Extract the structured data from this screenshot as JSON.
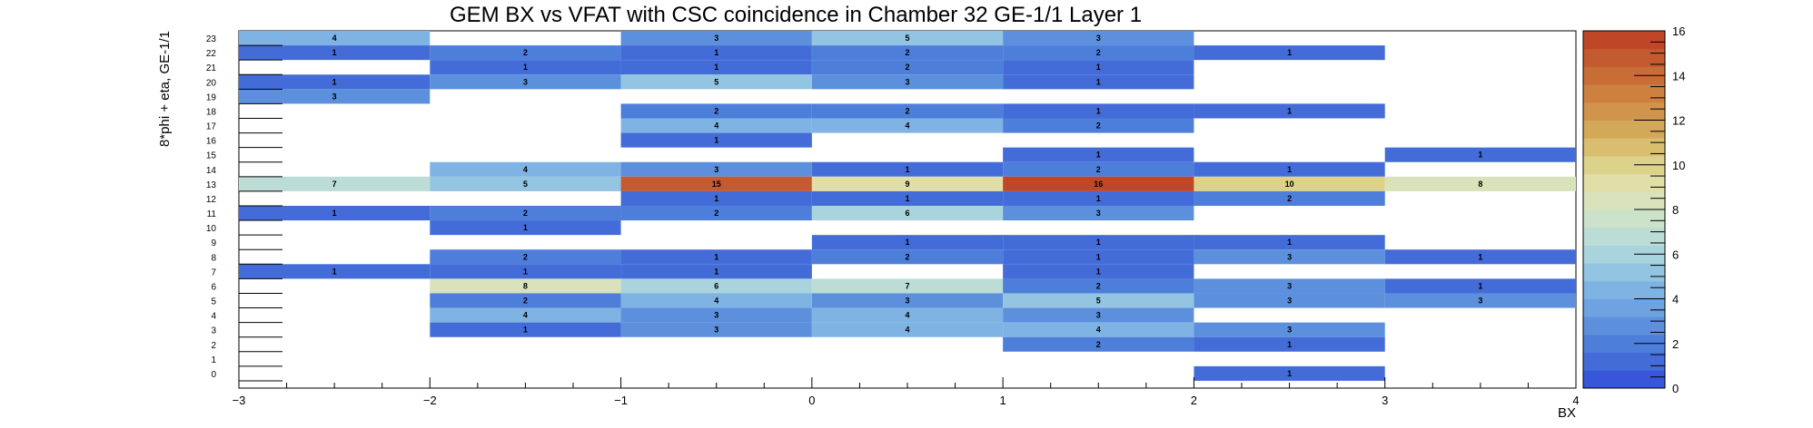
{
  "chart_data": {
    "type": "heatmap",
    "title": "GEM BX vs VFAT with CSC coincidence in Chamber 32 GE-1/1 Layer 1",
    "xlabel": "BX",
    "ylabel": "8*phi + eta, GE-1/1",
    "xlim": [
      -3,
      4
    ],
    "ylim": [
      0,
      23
    ],
    "x_ticks": [
      "−3",
      "−2",
      "−1",
      "0",
      "1",
      "2",
      "3",
      "4"
    ],
    "y_ticks": [
      "0",
      "1",
      "2",
      "3",
      "4",
      "5",
      "6",
      "7",
      "8",
      "9",
      "10",
      "11",
      "12",
      "13",
      "14",
      "15",
      "16",
      "17",
      "18",
      "19",
      "20",
      "21",
      "22",
      "23"
    ],
    "colorbar": {
      "min": 0,
      "max": 16,
      "ticks": [
        "0",
        "2",
        "4",
        "6",
        "8",
        "10",
        "12",
        "14",
        "16"
      ]
    },
    "cells": [
      {
        "x0": -3,
        "x1": -2,
        "y": 23,
        "v": 4
      },
      {
        "x0": -1,
        "x1": 0,
        "y": 23,
        "v": 3
      },
      {
        "x0": 0,
        "x1": 1,
        "y": 23,
        "v": 5
      },
      {
        "x0": 1,
        "x1": 2,
        "y": 23,
        "v": 3
      },
      {
        "x0": -3,
        "x1": -2,
        "y": 22,
        "v": 1
      },
      {
        "x0": -2,
        "x1": -1,
        "y": 22,
        "v": 2
      },
      {
        "x0": -1,
        "x1": 0,
        "y": 22,
        "v": 1
      },
      {
        "x0": 0,
        "x1": 1,
        "y": 22,
        "v": 2
      },
      {
        "x0": 1,
        "x1": 2,
        "y": 22,
        "v": 2
      },
      {
        "x0": 2,
        "x1": 3,
        "y": 22,
        "v": 1
      },
      {
        "x0": -2,
        "x1": -1,
        "y": 21,
        "v": 1
      },
      {
        "x0": -1,
        "x1": 0,
        "y": 21,
        "v": 1
      },
      {
        "x0": 0,
        "x1": 1,
        "y": 21,
        "v": 2
      },
      {
        "x0": 1,
        "x1": 2,
        "y": 21,
        "v": 1
      },
      {
        "x0": -3,
        "x1": -2,
        "y": 20,
        "v": 1
      },
      {
        "x0": -2,
        "x1": -1,
        "y": 20,
        "v": 3
      },
      {
        "x0": -1,
        "x1": 0,
        "y": 20,
        "v": 5
      },
      {
        "x0": 0,
        "x1": 1,
        "y": 20,
        "v": 3
      },
      {
        "x0": 1,
        "x1": 2,
        "y": 20,
        "v": 1
      },
      {
        "x0": -3,
        "x1": -2,
        "y": 19,
        "v": 3
      },
      {
        "x0": -1,
        "x1": 0,
        "y": 18,
        "v": 2
      },
      {
        "x0": 0,
        "x1": 1,
        "y": 18,
        "v": 2
      },
      {
        "x0": 1,
        "x1": 2,
        "y": 18,
        "v": 1
      },
      {
        "x0": 2,
        "x1": 3,
        "y": 18,
        "v": 1
      },
      {
        "x0": -1,
        "x1": 0,
        "y": 17,
        "v": 4
      },
      {
        "x0": 0,
        "x1": 1,
        "y": 17,
        "v": 4
      },
      {
        "x0": 1,
        "x1": 2,
        "y": 17,
        "v": 2
      },
      {
        "x0": -1,
        "x1": 0,
        "y": 16,
        "v": 1
      },
      {
        "x0": 1,
        "x1": 2,
        "y": 15,
        "v": 1
      },
      {
        "x0": 3,
        "x1": 4,
        "y": 15,
        "v": 1
      },
      {
        "x0": -2,
        "x1": -1,
        "y": 14,
        "v": 4
      },
      {
        "x0": -1,
        "x1": 0,
        "y": 14,
        "v": 3
      },
      {
        "x0": 0,
        "x1": 1,
        "y": 14,
        "v": 1
      },
      {
        "x0": 1,
        "x1": 2,
        "y": 14,
        "v": 2
      },
      {
        "x0": 2,
        "x1": 3,
        "y": 14,
        "v": 1
      },
      {
        "x0": -3,
        "x1": -2,
        "y": 13,
        "v": 7
      },
      {
        "x0": -2,
        "x1": -1,
        "y": 13,
        "v": 5
      },
      {
        "x0": -1,
        "x1": 0,
        "y": 13,
        "v": 15
      },
      {
        "x0": 0,
        "x1": 1,
        "y": 13,
        "v": 9
      },
      {
        "x0": 1,
        "x1": 2,
        "y": 13,
        "v": 16
      },
      {
        "x0": 2,
        "x1": 3,
        "y": 13,
        "v": 10
      },
      {
        "x0": 3,
        "x1": 4,
        "y": 13,
        "v": 8
      },
      {
        "x0": -1,
        "x1": 0,
        "y": 12,
        "v": 1
      },
      {
        "x0": 0,
        "x1": 1,
        "y": 12,
        "v": 1
      },
      {
        "x0": 1,
        "x1": 2,
        "y": 12,
        "v": 1
      },
      {
        "x0": 2,
        "x1": 3,
        "y": 12,
        "v": 2
      },
      {
        "x0": -3,
        "x1": -2,
        "y": 11,
        "v": 1
      },
      {
        "x0": -2,
        "x1": -1,
        "y": 11,
        "v": 2
      },
      {
        "x0": -1,
        "x1": 0,
        "y": 11,
        "v": 2
      },
      {
        "x0": 0,
        "x1": 1,
        "y": 11,
        "v": 6
      },
      {
        "x0": 1,
        "x1": 2,
        "y": 11,
        "v": 3
      },
      {
        "x0": -2,
        "x1": -1,
        "y": 10,
        "v": 1
      },
      {
        "x0": 0,
        "x1": 1,
        "y": 9,
        "v": 1
      },
      {
        "x0": 1,
        "x1": 2,
        "y": 9,
        "v": 1
      },
      {
        "x0": 2,
        "x1": 3,
        "y": 9,
        "v": 1
      },
      {
        "x0": -2,
        "x1": -1,
        "y": 8,
        "v": 2
      },
      {
        "x0": -1,
        "x1": 0,
        "y": 8,
        "v": 1
      },
      {
        "x0": 0,
        "x1": 1,
        "y": 8,
        "v": 2
      },
      {
        "x0": 1,
        "x1": 2,
        "y": 8,
        "v": 1
      },
      {
        "x0": 2,
        "x1": 3,
        "y": 8,
        "v": 3
      },
      {
        "x0": 3,
        "x1": 4,
        "y": 8,
        "v": 1
      },
      {
        "x0": -3,
        "x1": -2,
        "y": 7,
        "v": 1
      },
      {
        "x0": -2,
        "x1": -1,
        "y": 7,
        "v": 1
      },
      {
        "x0": -1,
        "x1": 0,
        "y": 7,
        "v": 1
      },
      {
        "x0": 1,
        "x1": 2,
        "y": 7,
        "v": 1
      },
      {
        "x0": -2,
        "x1": -1,
        "y": 6,
        "v": 8
      },
      {
        "x0": -1,
        "x1": 0,
        "y": 6,
        "v": 6
      },
      {
        "x0": 0,
        "x1": 1,
        "y": 6,
        "v": 7
      },
      {
        "x0": 1,
        "x1": 2,
        "y": 6,
        "v": 2
      },
      {
        "x0": 2,
        "x1": 3,
        "y": 6,
        "v": 3
      },
      {
        "x0": 3,
        "x1": 4,
        "y": 6,
        "v": 1
      },
      {
        "x0": -2,
        "x1": -1,
        "y": 5,
        "v": 2
      },
      {
        "x0": -1,
        "x1": 0,
        "y": 5,
        "v": 4
      },
      {
        "x0": 0,
        "x1": 1,
        "y": 5,
        "v": 3
      },
      {
        "x0": 1,
        "x1": 2,
        "y": 5,
        "v": 5
      },
      {
        "x0": 2,
        "x1": 3,
        "y": 5,
        "v": 3
      },
      {
        "x0": 3,
        "x1": 4,
        "y": 5,
        "v": 3
      },
      {
        "x0": -2,
        "x1": -1,
        "y": 4,
        "v": 4
      },
      {
        "x0": -1,
        "x1": 0,
        "y": 4,
        "v": 3
      },
      {
        "x0": 0,
        "x1": 1,
        "y": 4,
        "v": 4
      },
      {
        "x0": 1,
        "x1": 2,
        "y": 4,
        "v": 3
      },
      {
        "x0": -2,
        "x1": -1,
        "y": 3,
        "v": 1
      },
      {
        "x0": -1,
        "x1": 0,
        "y": 3,
        "v": 3
      },
      {
        "x0": 0,
        "x1": 1,
        "y": 3,
        "v": 4
      },
      {
        "x0": 1,
        "x1": 2,
        "y": 3,
        "v": 4
      },
      {
        "x0": 2,
        "x1": 3,
        "y": 3,
        "v": 3
      },
      {
        "x0": 1,
        "x1": 2,
        "y": 2,
        "v": 2
      },
      {
        "x0": 2,
        "x1": 3,
        "y": 2,
        "v": 1
      },
      {
        "x0": 2,
        "x1": 3,
        "y": 0,
        "v": 1
      }
    ]
  }
}
